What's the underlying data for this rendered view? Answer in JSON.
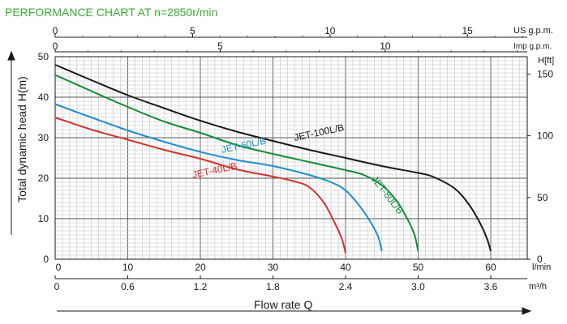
{
  "chart_data": {
    "type": "line",
    "title": "PERFORMANCE CHART AT n=2850r/min",
    "xlabel": "Flow rate Q",
    "ylabel": "Total dynamic head H(m)",
    "x_unit_primary": "l/min",
    "x_unit_m3h": "m³/h",
    "x_unit_usgpm": "US g.p.m.",
    "x_unit_impgpm": "Imp g.p.m.",
    "y_unit_right": "H[ft]",
    "xlim": [
      0,
      65
    ],
    "ylim": [
      0,
      50
    ],
    "grid": true,
    "x_ticks_lmin": [
      "0",
      "10",
      "20",
      "30",
      "40",
      "50",
      "60"
    ],
    "x_ticks_m3h": [
      "0",
      "0.6",
      "1.2",
      "1.8",
      "2.4",
      "3.0",
      "3.6"
    ],
    "x_ticks_usgpm": [
      "0",
      "5",
      "10",
      "15"
    ],
    "x_ticks_impgpm": [
      "0",
      "5",
      "10"
    ],
    "y_ticks_m": [
      "0",
      "10",
      "20",
      "30",
      "40",
      "50"
    ],
    "y_ticks_ft": [
      "0",
      "50",
      "100",
      "150"
    ],
    "colors": {
      "title": "#3aaa35",
      "grid_major": "#555555",
      "grid_minor": "#bbbbbb",
      "axis": "#1a1a1a"
    },
    "series": [
      {
        "name": "JET-100L/B",
        "color": "#1a1a1a",
        "x": [
          0,
          5,
          10,
          15,
          20,
          25,
          30,
          35,
          40,
          45,
          50,
          52,
          55,
          57,
          58.5,
          59.5,
          60
        ],
        "y": [
          48,
          44.2,
          40.5,
          37.3,
          34.2,
          31.5,
          29.2,
          27,
          25,
          23,
          21.3,
          20.4,
          17.5,
          13.5,
          9,
          5,
          2
        ]
      },
      {
        "name": "JET-80L/B",
        "color": "#138c3c",
        "x": [
          0,
          5,
          10,
          15,
          20,
          25,
          30,
          35,
          40,
          42.5,
          45,
          47,
          48.5,
          49.5,
          50
        ],
        "y": [
          45.5,
          41.5,
          37.6,
          34,
          31.2,
          28.2,
          26,
          24,
          22,
          20.8,
          18.3,
          14.5,
          10,
          6,
          2
        ]
      },
      {
        "name": "JET-60L/B",
        "color": "#1f8ecd",
        "x": [
          0,
          5,
          10,
          15,
          20,
          25,
          30,
          35,
          38,
          40,
          42,
          43.5,
          44.5,
          45
        ],
        "y": [
          38.3,
          35,
          31.8,
          29,
          26.5,
          24.5,
          23,
          20.8,
          19,
          17,
          13,
          9,
          5.5,
          2
        ]
      },
      {
        "name": "JET-40L/B",
        "color": "#d2322d",
        "x": [
          0,
          5,
          10,
          15,
          20,
          25,
          30,
          33,
          35,
          37,
          38.5,
          39.5,
          40
        ],
        "y": [
          35,
          32,
          29.5,
          27,
          24.8,
          22.2,
          20.4,
          19.2,
          17.8,
          14,
          9,
          5,
          1.5
        ]
      }
    ]
  }
}
